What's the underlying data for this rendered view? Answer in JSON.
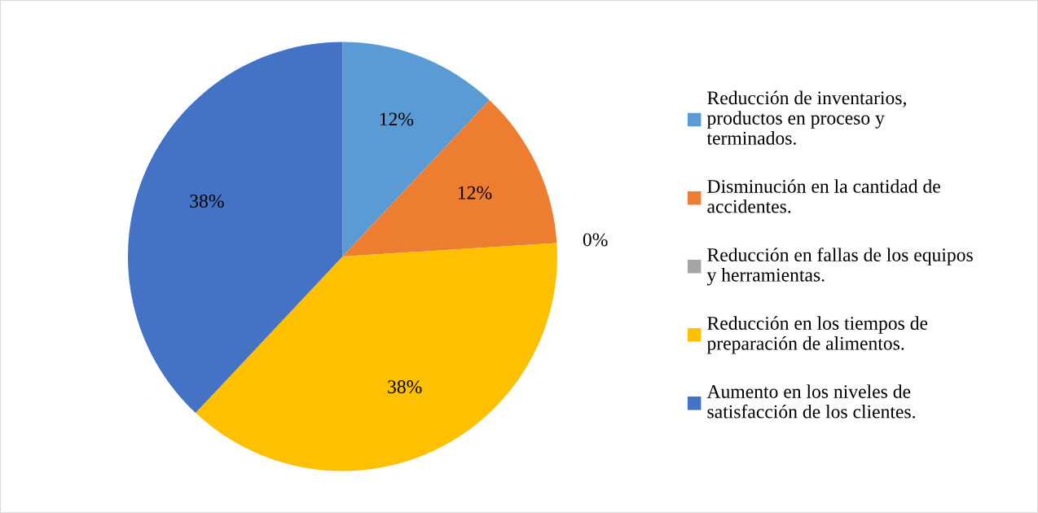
{
  "chart_data": {
    "type": "pie",
    "categories": [
      "Reducción de inventarios,\nproductos en proceso y\nterminados.",
      "Disminución en la cantidad de\naccidentes.",
      "Reducción en fallas de los equipos\ny herramientas.",
      "Reducción en los tiempos de\npreparación de alimentos.",
      "Aumento en los niveles de\nsatisfacción de los clientes."
    ],
    "values": [
      12,
      12,
      0,
      38,
      38
    ],
    "colors": [
      "#5b9bd5",
      "#ed7d31",
      "#a5a5a5",
      "#ffc000",
      "#4472c4"
    ],
    "value_labels": [
      "12%",
      "12%",
      "0%",
      "38%",
      "38%"
    ],
    "legend": "right"
  }
}
